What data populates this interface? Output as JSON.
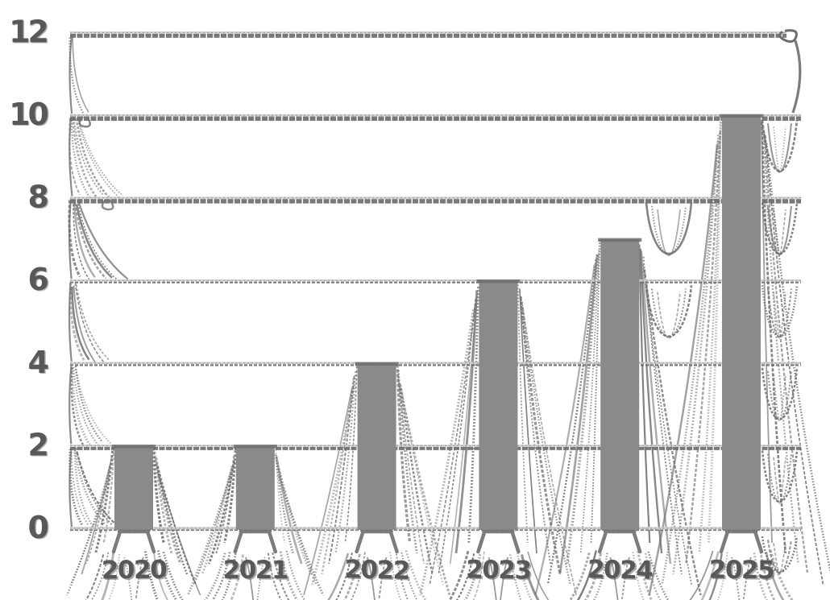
{
  "page": {
    "background_color": "#ffffff"
  },
  "chart_data": {
    "type": "bar",
    "title": "",
    "xlabel": "",
    "ylabel": "",
    "categories": [
      "2020",
      "2021",
      "2022",
      "2023",
      "2024",
      "2025"
    ],
    "values": [
      2,
      2,
      4,
      6,
      7,
      10
    ],
    "ylim": [
      0,
      12
    ],
    "yticks": [
      0,
      2,
      4,
      6,
      8,
      10,
      12
    ],
    "grid": true,
    "legend": false,
    "style": "hand-drawn-sketch",
    "bar_color": "#8a8a8a",
    "line_color": "#6e6e6e",
    "gridline_color": "#cfcfcf",
    "tick_label_color": "#585858"
  }
}
